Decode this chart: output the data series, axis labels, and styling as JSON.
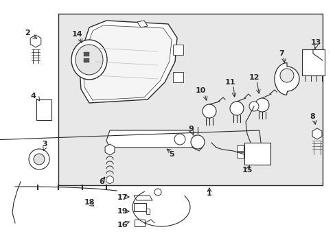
{
  "fig_width": 4.89,
  "fig_height": 3.6,
  "dpi": 100,
  "bg_color": "#ffffff",
  "box_fill": "#e8e8e8",
  "line_color": "#2a2a2a"
}
